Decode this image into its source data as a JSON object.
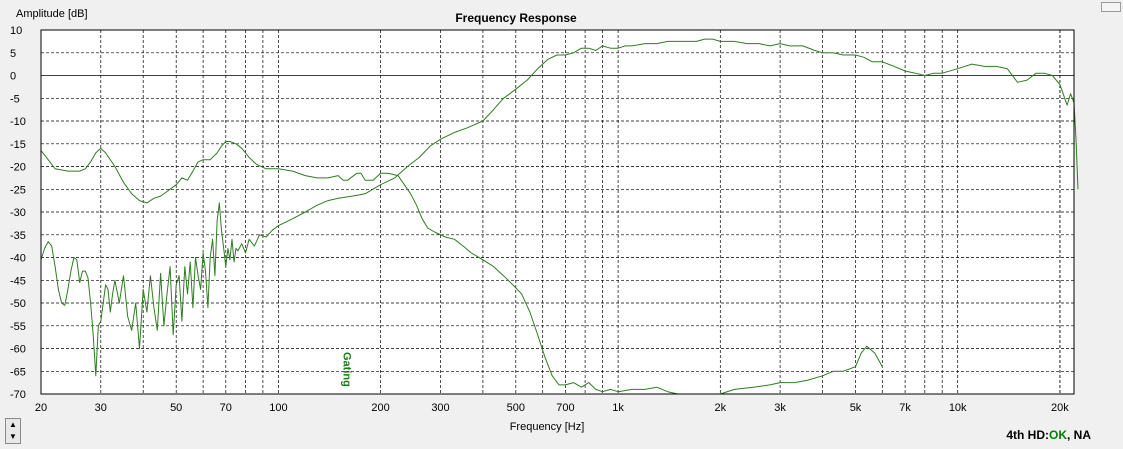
{
  "chart_data": {
    "type": "line",
    "title": "Frequency Response",
    "xlabel": "Frequency [Hz]",
    "ylabel": "Amplitude [dB]",
    "x_scale": "log",
    "xlim": [
      20,
      22000
    ],
    "ylim": [
      -70,
      10
    ],
    "grid": true,
    "x_tick_labels": [
      {
        "value": 20,
        "label": "20"
      },
      {
        "value": 30,
        "label": "30"
      },
      {
        "value": 50,
        "label": "50"
      },
      {
        "value": 70,
        "label": "70"
      },
      {
        "value": 100,
        "label": "100"
      },
      {
        "value": 200,
        "label": "200"
      },
      {
        "value": 300,
        "label": "300"
      },
      {
        "value": 500,
        "label": "500"
      },
      {
        "value": 700,
        "label": "700"
      },
      {
        "value": 1000,
        "label": "1k"
      },
      {
        "value": 2000,
        "label": "2k"
      },
      {
        "value": 3000,
        "label": "3k"
      },
      {
        "value": 5000,
        "label": "5k"
      },
      {
        "value": 7000,
        "label": "7k"
      },
      {
        "value": 10000,
        "label": "10k"
      },
      {
        "value": 20000,
        "label": "20k"
      }
    ],
    "y_ticks": [
      10,
      5,
      0,
      -5,
      -10,
      -15,
      -20,
      -25,
      -30,
      -35,
      -40,
      -45,
      -50,
      -55,
      -60,
      -65,
      -70
    ],
    "annotation": {
      "text": "Gating",
      "x": 160
    },
    "series": [
      {
        "points": [
          [
            20,
            -16.5
          ],
          [
            21,
            -18.5
          ],
          [
            22,
            -20.5
          ],
          [
            24,
            -21
          ],
          [
            26,
            -21
          ],
          [
            27,
            -20.5
          ],
          [
            28,
            -19
          ],
          [
            29,
            -17
          ],
          [
            30,
            -16
          ],
          [
            31,
            -17
          ],
          [
            33,
            -20
          ],
          [
            35,
            -23.5
          ],
          [
            37,
            -26
          ],
          [
            39,
            -27.5
          ],
          [
            41,
            -28
          ],
          [
            43,
            -27
          ],
          [
            45,
            -26.5
          ],
          [
            47,
            -25.5
          ],
          [
            50,
            -24
          ],
          [
            52,
            -22.5
          ],
          [
            54,
            -23
          ],
          [
            56,
            -21
          ],
          [
            58,
            -19
          ],
          [
            60,
            -18.5
          ],
          [
            63,
            -18.5
          ],
          [
            66,
            -17
          ],
          [
            68,
            -15.5
          ],
          [
            70,
            -14.5
          ],
          [
            72,
            -14.5
          ],
          [
            75,
            -15
          ],
          [
            78,
            -16
          ],
          [
            82,
            -18
          ],
          [
            86,
            -19.5
          ],
          [
            92,
            -20.5
          ],
          [
            100,
            -20.5
          ],
          [
            110,
            -21
          ],
          [
            120,
            -22
          ],
          [
            130,
            -22.5
          ],
          [
            140,
            -22.5
          ],
          [
            150,
            -22
          ],
          [
            155,
            -23
          ],
          [
            160,
            -23
          ],
          [
            170,
            -21.5
          ],
          [
            175,
            -21.5
          ],
          [
            180,
            -23
          ],
          [
            190,
            -23
          ],
          [
            200,
            -21.5
          ],
          [
            210,
            -21.5
          ],
          [
            225,
            -22
          ],
          [
            235,
            -24
          ],
          [
            245,
            -26
          ],
          [
            255,
            -28.5
          ],
          [
            265,
            -31.5
          ],
          [
            275,
            -33.5
          ],
          [
            290,
            -34.5
          ],
          [
            310,
            -35.5
          ],
          [
            330,
            -36
          ],
          [
            350,
            -37.5
          ],
          [
            370,
            -39
          ],
          [
            400,
            -40.5
          ],
          [
            430,
            -42
          ],
          [
            460,
            -44
          ],
          [
            490,
            -46
          ],
          [
            520,
            -48
          ],
          [
            550,
            -52
          ],
          [
            580,
            -57
          ],
          [
            610,
            -62
          ],
          [
            640,
            -66
          ],
          [
            670,
            -68
          ],
          [
            700,
            -68
          ],
          [
            740,
            -67.5
          ],
          [
            780,
            -68.5
          ],
          [
            820,
            -67.5
          ],
          [
            860,
            -69
          ],
          [
            900,
            -69.5
          ],
          [
            950,
            -69
          ],
          [
            1000,
            -69.5
          ],
          [
            1100,
            -69
          ],
          [
            1200,
            -69
          ],
          [
            1300,
            -68.5
          ],
          [
            1400,
            -69.5
          ],
          [
            1500,
            -70
          ]
        ]
      },
      {
        "points": [
          [
            20,
            -40.5
          ],
          [
            20.5,
            -38
          ],
          [
            21,
            -36.5
          ],
          [
            21.5,
            -37.5
          ],
          [
            22,
            -42
          ],
          [
            22.5,
            -47
          ],
          [
            23,
            -50
          ],
          [
            23.5,
            -50.5
          ],
          [
            24,
            -47
          ],
          [
            24.5,
            -43
          ],
          [
            25,
            -40
          ],
          [
            25.5,
            -40.5
          ],
          [
            26,
            -45.5
          ],
          [
            26.5,
            -43
          ],
          [
            27,
            -43
          ],
          [
            27.5,
            -44.5
          ],
          [
            28,
            -50
          ],
          [
            28.5,
            -57
          ],
          [
            29,
            -66
          ],
          [
            29.5,
            -55
          ],
          [
            30,
            -54
          ],
          [
            31,
            -46
          ],
          [
            31.5,
            -47
          ],
          [
            32,
            -52
          ],
          [
            32.5,
            -48
          ],
          [
            33,
            -45
          ],
          [
            34,
            -50
          ],
          [
            35,
            -44
          ],
          [
            36,
            -53
          ],
          [
            37,
            -56
          ],
          [
            38,
            -50
          ],
          [
            39,
            -60
          ],
          [
            40,
            -47
          ],
          [
            41,
            -52
          ],
          [
            42,
            -44
          ],
          [
            43,
            -51
          ],
          [
            44,
            -56
          ],
          [
            45,
            -43.5
          ],
          [
            46,
            -55
          ],
          [
            47,
            -48
          ],
          [
            48,
            -42
          ],
          [
            49,
            -57
          ],
          [
            50,
            -46
          ],
          [
            51,
            -44
          ],
          [
            52,
            -54
          ],
          [
            53,
            -42
          ],
          [
            54,
            -48
          ],
          [
            55,
            -41
          ],
          [
            56,
            -51
          ],
          [
            57,
            -40
          ],
          [
            58,
            -44
          ],
          [
            59,
            -47
          ],
          [
            60,
            -39
          ],
          [
            61,
            -43
          ],
          [
            62,
            -51
          ],
          [
            63,
            -40
          ],
          [
            64,
            -36
          ],
          [
            65,
            -44
          ],
          [
            66,
            -32
          ],
          [
            67,
            -28
          ],
          [
            68,
            -34
          ],
          [
            69,
            -38
          ],
          [
            70,
            -42
          ],
          [
            71,
            -38
          ],
          [
            72,
            -40.5
          ],
          [
            73,
            -36
          ],
          [
            74,
            -41
          ],
          [
            75,
            -38
          ],
          [
            76,
            -38.5
          ],
          [
            78,
            -37
          ],
          [
            80,
            -39
          ],
          [
            82,
            -36
          ],
          [
            85,
            -37.5
          ],
          [
            88,
            -35
          ],
          [
            92,
            -35.5
          ],
          [
            96,
            -34
          ],
          [
            100,
            -33
          ],
          [
            110,
            -31.5
          ],
          [
            120,
            -30
          ],
          [
            130,
            -28.5
          ],
          [
            140,
            -27.5
          ],
          [
            150,
            -27
          ],
          [
            165,
            -26.5
          ],
          [
            180,
            -26
          ],
          [
            200,
            -24
          ],
          [
            220,
            -22.5
          ],
          [
            240,
            -20
          ],
          [
            260,
            -18
          ],
          [
            280,
            -15.5
          ],
          [
            300,
            -14
          ],
          [
            330,
            -12.5
          ],
          [
            360,
            -11.5
          ],
          [
            400,
            -10
          ],
          [
            430,
            -7.5
          ],
          [
            460,
            -5
          ],
          [
            500,
            -3
          ],
          [
            540,
            -1
          ],
          [
            580,
            1.5
          ],
          [
            620,
            3.5
          ],
          [
            660,
            4.5
          ],
          [
            700,
            4.5
          ],
          [
            740,
            5
          ],
          [
            780,
            6
          ],
          [
            820,
            6
          ],
          [
            860,
            5.5
          ],
          [
            900,
            6.5
          ],
          [
            950,
            6
          ],
          [
            1000,
            6
          ],
          [
            1050,
            6.5
          ],
          [
            1100,
            6.5
          ],
          [
            1200,
            7
          ],
          [
            1300,
            7
          ],
          [
            1400,
            7.5
          ],
          [
            1500,
            7.5
          ],
          [
            1600,
            7.5
          ],
          [
            1700,
            7.5
          ],
          [
            1800,
            8
          ],
          [
            1900,
            8
          ],
          [
            2000,
            7.5
          ],
          [
            2200,
            7.5
          ],
          [
            2400,
            7
          ],
          [
            2600,
            7
          ],
          [
            2800,
            6.5
          ],
          [
            3000,
            7
          ],
          [
            3200,
            6.5
          ],
          [
            3500,
            6.5
          ],
          [
            3800,
            5.5
          ],
          [
            4000,
            5
          ],
          [
            4300,
            5
          ],
          [
            4600,
            4.5
          ],
          [
            5000,
            4.5
          ],
          [
            5300,
            4
          ],
          [
            5600,
            3
          ],
          [
            6000,
            3
          ],
          [
            6500,
            2
          ],
          [
            7000,
            1
          ],
          [
            7500,
            0.5
          ],
          [
            8000,
            0
          ],
          [
            8500,
            0.5
          ],
          [
            9000,
            0.5
          ],
          [
            10000,
            1.5
          ],
          [
            11000,
            2.5
          ],
          [
            12000,
            2
          ],
          [
            13000,
            2
          ],
          [
            14000,
            1.5
          ],
          [
            15000,
            -1.5
          ],
          [
            16000,
            -1
          ],
          [
            17000,
            0.5
          ],
          [
            18000,
            0.5
          ],
          [
            19000,
            0
          ],
          [
            20000,
            -2
          ],
          [
            21000,
            -6.5
          ],
          [
            21500,
            -4
          ],
          [
            22000,
            -6
          ],
          [
            22300,
            -14
          ],
          [
            22600,
            -25
          ]
        ]
      },
      {
        "points": [
          [
            2000,
            -70
          ],
          [
            2200,
            -69
          ],
          [
            2500,
            -68.5
          ],
          [
            2800,
            -68
          ],
          [
            3000,
            -67.5
          ],
          [
            3300,
            -67.5
          ],
          [
            3600,
            -67
          ],
          [
            4000,
            -66
          ],
          [
            4300,
            -65
          ],
          [
            4600,
            -65
          ],
          [
            5000,
            -64
          ],
          [
            5200,
            -61
          ],
          [
            5400,
            -59.5
          ],
          [
            5700,
            -61
          ],
          [
            6000,
            -64
          ]
        ]
      }
    ]
  },
  "status": {
    "prefix": "4th HD:",
    "ok": "OK",
    "suffix": ", NA"
  },
  "spinner": {
    "up": "▲",
    "down": "▼"
  },
  "colors": {
    "line": "#2f7d22",
    "annotation": "#1a7a1a",
    "background": "#ffffff",
    "frame": "#f0f0f0"
  }
}
